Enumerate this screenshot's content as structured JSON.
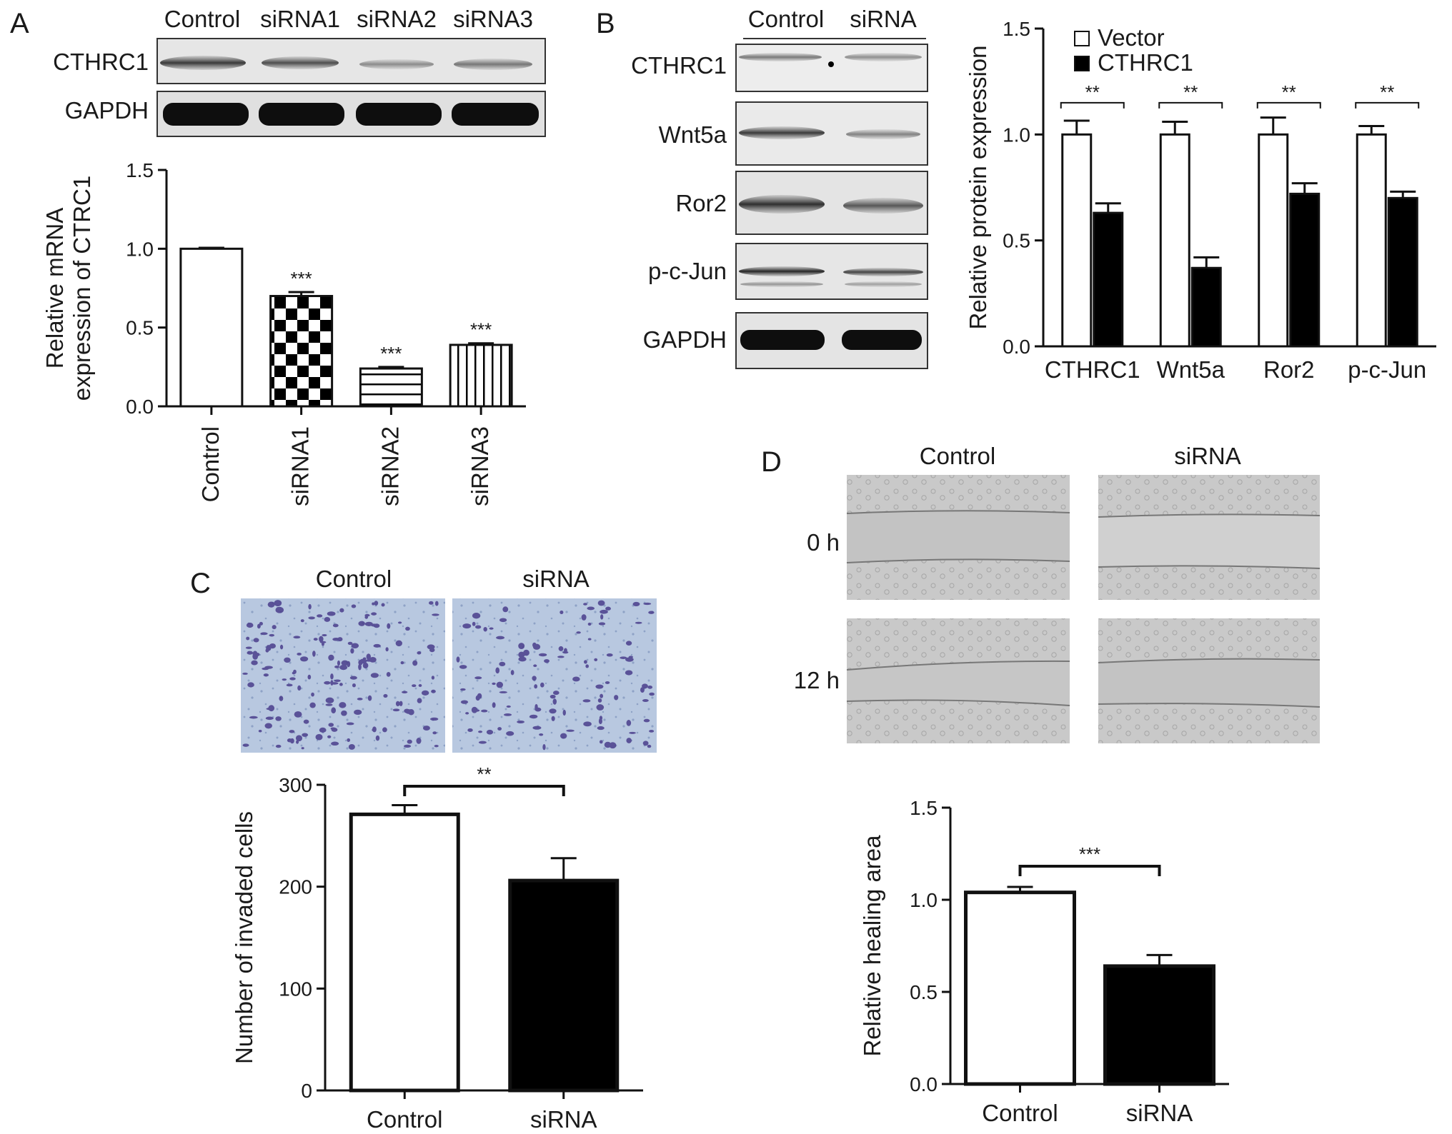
{
  "panels": {
    "A": {
      "letter": "A",
      "blot": {
        "lane_labels": [
          "Control",
          "siRNA1",
          "siRNA2",
          "siRNA3"
        ],
        "row_labels": [
          "CTHRC1",
          "GAPDH"
        ]
      }
    },
    "B": {
      "letter": "B",
      "blot": {
        "lane_labels": [
          "Control",
          "siRNA"
        ],
        "row_labels": [
          "CTHRC1",
          "Wnt5a",
          "Ror2",
          "p-c-Jun",
          "GAPDH"
        ]
      }
    },
    "C": {
      "letter": "C",
      "image_labels": [
        "Control",
        "siRNA"
      ]
    },
    "D": {
      "letter": "D",
      "column_labels": [
        "Control",
        "siRNA"
      ],
      "row_labels": [
        "0 h",
        "12 h"
      ]
    }
  },
  "chart_data": [
    {
      "id": "A",
      "type": "bar",
      "categories": [
        "Control",
        "siRNA1",
        "siRNA2",
        "siRNA3"
      ],
      "values": [
        1.0,
        0.7,
        0.24,
        0.39
      ],
      "errors": [
        0.006,
        0.025,
        0.01,
        0.01
      ],
      "fills": [
        "open",
        "checker",
        "hstripes",
        "vstripes"
      ],
      "significance": [
        "",
        "***",
        "***",
        "***"
      ],
      "ylabel": [
        "Relative mRNA",
        "expression of CTRC1"
      ],
      "ylim": [
        0,
        1.5
      ],
      "yticks": [
        "0.0",
        "0.5",
        "1.0",
        "1.5"
      ],
      "xtick_rotation": "vertical"
    },
    {
      "id": "B",
      "type": "bar",
      "categories": [
        "CTHRC1",
        "Wnt5a",
        "Ror2",
        "p-c-Jun"
      ],
      "series": [
        {
          "name": "Vector",
          "values": [
            1.0,
            1.0,
            1.0,
            1.0
          ],
          "errors": [
            0.065,
            0.06,
            0.08,
            0.04
          ],
          "fill": "#ffffff"
        },
        {
          "name": "CTHRC1",
          "values": [
            0.63,
            0.37,
            0.72,
            0.7
          ],
          "errors": [
            0.045,
            0.05,
            0.05,
            0.03
          ],
          "fill": "#000000"
        }
      ],
      "significance": [
        "**",
        "**",
        "**",
        "**"
      ],
      "ylabel": "Relative protein expression",
      "ylim": [
        0,
        1.5
      ],
      "yticks": [
        "0.0",
        "0.5",
        "1.0",
        "1.5"
      ],
      "legend": "top-left"
    },
    {
      "id": "C",
      "type": "bar",
      "categories": [
        "Control",
        "siRNA"
      ],
      "values": [
        271,
        206
      ],
      "errors": [
        9,
        22
      ],
      "fills": [
        "#ffffff",
        "#000000"
      ],
      "significance": "**",
      "ylabel": "Number of invaded cells",
      "ylim": [
        0,
        300
      ],
      "yticks": [
        "0",
        "100",
        "200",
        "300"
      ]
    },
    {
      "id": "D",
      "type": "bar",
      "categories": [
        "Control",
        "siRNA"
      ],
      "values": [
        1.04,
        0.64
      ],
      "errors": [
        0.03,
        0.06
      ],
      "fills": [
        "#ffffff",
        "#000000"
      ],
      "significance": "***",
      "ylabel": "Relative healing area",
      "ylim": [
        0,
        1.5
      ],
      "yticks": [
        "0.0",
        "0.5",
        "1.0",
        "1.5"
      ]
    }
  ]
}
